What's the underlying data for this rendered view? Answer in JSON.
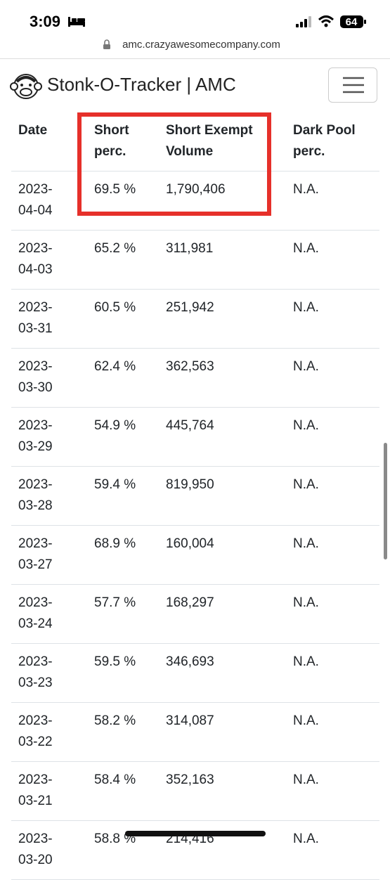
{
  "status_bar": {
    "time": "3:09",
    "battery": "64"
  },
  "address_bar": {
    "url": "amc.crazyawesomecompany.com"
  },
  "navbar": {
    "title": "Stonk-O-Tracker | AMC"
  },
  "table": {
    "headers": [
      "Date",
      "Short perc.",
      "Short Exempt Volume",
      "Dark Pool perc."
    ],
    "rows": [
      [
        "2023-04-04",
        "69.5 %",
        "1,790,406",
        "N.A."
      ],
      [
        "2023-04-03",
        "65.2 %",
        "311,981",
        "N.A."
      ],
      [
        "2023-03-31",
        "60.5 %",
        "251,942",
        "N.A."
      ],
      [
        "2023-03-30",
        "62.4 %",
        "362,563",
        "N.A."
      ],
      [
        "2023-03-29",
        "54.9 %",
        "445,764",
        "N.A."
      ],
      [
        "2023-03-28",
        "59.4 %",
        "819,950",
        "N.A."
      ],
      [
        "2023-03-27",
        "68.9 %",
        "160,004",
        "N.A."
      ],
      [
        "2023-03-24",
        "57.7 %",
        "168,297",
        "N.A."
      ],
      [
        "2023-03-23",
        "59.5 %",
        "346,693",
        "N.A."
      ],
      [
        "2023-03-22",
        "58.2 %",
        "314,087",
        "N.A."
      ],
      [
        "2023-03-21",
        "58.4 %",
        "352,163",
        "N.A."
      ],
      [
        "2023-03-20",
        "58.8 %",
        "214,416",
        "N.A."
      ]
    ]
  }
}
